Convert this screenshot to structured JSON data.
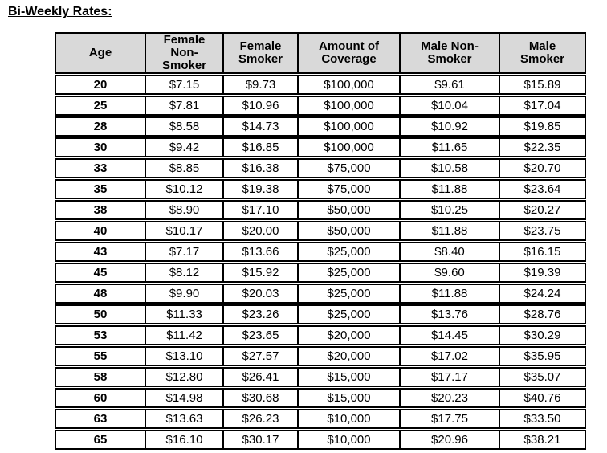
{
  "title": "Bi-Weekly Rates:",
  "colors": {
    "header_bg": "#d9d9d9",
    "border": "#000000",
    "text": "#000000",
    "background": "#ffffff"
  },
  "table": {
    "headers": [
      "Age",
      "Female\nNon-\nSmoker",
      "Female\nSmoker",
      "Amount of\nCoverage",
      "Male Non-\nSmoker",
      "Male\nSmoker"
    ],
    "rows": [
      [
        "20",
        "$7.15",
        "$9.73",
        "$100,000",
        "$9.61",
        "$15.89"
      ],
      [
        "25",
        "$7.81",
        "$10.96",
        "$100,000",
        "$10.04",
        "$17.04"
      ],
      [
        "28",
        "$8.58",
        "$14.73",
        "$100,000",
        "$10.92",
        "$19.85"
      ],
      [
        "30",
        "$9.42",
        "$16.85",
        "$100,000",
        "$11.65",
        "$22.35"
      ],
      [
        "33",
        "$8.85",
        "$16.38",
        "$75,000",
        "$10.58",
        "$20.70"
      ],
      [
        "35",
        "$10.12",
        "$19.38",
        "$75,000",
        "$11.88",
        "$23.64"
      ],
      [
        "38",
        "$8.90",
        "$17.10",
        "$50,000",
        "$10.25",
        "$20.27"
      ],
      [
        "40",
        "$10.17",
        "$20.00",
        "$50,000",
        "$11.88",
        "$23.75"
      ],
      [
        "43",
        "$7.17",
        "$13.66",
        "$25,000",
        "$8.40",
        "$16.15"
      ],
      [
        "45",
        "$8.12",
        "$15.92",
        "$25,000",
        "$9.60",
        "$19.39"
      ],
      [
        "48",
        "$9.90",
        "$20.03",
        "$25,000",
        "$11.88",
        "$24.24"
      ],
      [
        "50",
        "$11.33",
        "$23.26",
        "$25,000",
        "$13.76",
        "$28.76"
      ],
      [
        "53",
        "$11.42",
        "$23.65",
        "$20,000",
        "$14.45",
        "$30.29"
      ],
      [
        "55",
        "$13.10",
        "$27.57",
        "$20,000",
        "$17.02",
        "$35.95"
      ],
      [
        "58",
        "$12.80",
        "$26.41",
        "$15,000",
        "$17.17",
        "$35.07"
      ],
      [
        "60",
        "$14.98",
        "$30.68",
        "$15,000",
        "$20.23",
        "$40.76"
      ],
      [
        "63",
        "$13.63",
        "$26.23",
        "$10,000",
        "$17.75",
        "$33.50"
      ],
      [
        "65",
        "$16.10",
        "$30.17",
        "$10,000",
        "$20.96",
        "$38.21"
      ]
    ]
  }
}
